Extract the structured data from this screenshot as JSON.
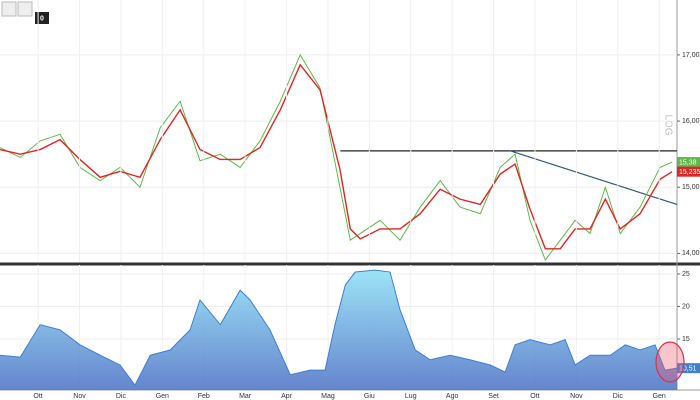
{
  "toolbar_label": "0",
  "chart_data": [
    {
      "type": "line",
      "scale_label": "LOG",
      "xlim": [
        -0.92,
        15.43
      ],
      "ylim": [
        13.87,
        17.83
      ],
      "yticks": [
        {
          "value": 14,
          "label": "14,00"
        },
        {
          "value": 15,
          "label": "15,00"
        },
        {
          "value": 16,
          "label": "16,00"
        },
        {
          "value": 17,
          "label": "17,00"
        }
      ],
      "x": [
        -0.92,
        -0.43,
        0.05,
        0.53,
        1.01,
        1.5,
        1.98,
        2.46,
        2.95,
        3.43,
        3.91,
        4.4,
        4.88,
        5.36,
        5.85,
        6.33,
        6.81,
        7.29,
        7.54,
        7.78,
        8.26,
        8.74,
        9.23,
        9.71,
        10.19,
        10.68,
        11.16,
        11.52,
        11.88,
        12.25,
        12.61,
        12.97,
        13.33,
        13.7,
        14.06,
        14.54,
        15.02,
        15.31
      ],
      "series": [
        {
          "color": "#5fb84a",
          "values": [
            15.6,
            15.45,
            15.7,
            15.8,
            15.3,
            15.1,
            15.3,
            15.0,
            15.9,
            16.3,
            15.4,
            15.5,
            15.3,
            15.7,
            16.3,
            17.0,
            16.5,
            15.0,
            14.2,
            14.3,
            14.5,
            14.2,
            14.7,
            15.1,
            14.7,
            14.6,
            15.3,
            15.5,
            14.5,
            13.9,
            14.2,
            14.5,
            14.3,
            15.0,
            14.3,
            14.7,
            15.3,
            15.38
          ],
          "value_labels": [
            null,
            null,
            null,
            null,
            null,
            null,
            null,
            null,
            null,
            null,
            null,
            null,
            null,
            null,
            null,
            null,
            null,
            null,
            null,
            null,
            null,
            null,
            null,
            null,
            null,
            null,
            null,
            null,
            null,
            null,
            null,
            null,
            null,
            null,
            null,
            null,
            null,
            "15,38"
          ]
        },
        {
          "color": "#e02525",
          "values": [
            15.57,
            15.5,
            15.57,
            15.72,
            15.42,
            15.15,
            15.24,
            15.15,
            15.72,
            16.17,
            15.57,
            15.42,
            15.42,
            15.6,
            16.17,
            16.85,
            16.47,
            15.27,
            14.37,
            14.22,
            14.37,
            14.37,
            14.6,
            14.97,
            14.82,
            14.74,
            15.2,
            15.35,
            14.67,
            14.07,
            14.07,
            14.37,
            14.37,
            14.82,
            14.37,
            14.6,
            15.12,
            15.235
          ],
          "value_labels": [
            null,
            null,
            null,
            null,
            null,
            null,
            null,
            null,
            null,
            null,
            null,
            null,
            null,
            null,
            null,
            null,
            null,
            null,
            null,
            null,
            null,
            null,
            null,
            null,
            null,
            null,
            null,
            null,
            null,
            null,
            null,
            null,
            null,
            null,
            null,
            null,
            null,
            "15,235"
          ]
        }
      ],
      "lines": [
        {
          "color": "#222222",
          "x": [
            7.3,
            15.43
          ],
          "y": [
            15.55,
            15.55
          ]
        },
        {
          "color": "#2e5b7a",
          "x": [
            11.4,
            15.43
          ],
          "y": [
            15.55,
            14.74
          ]
        }
      ]
    },
    {
      "type": "area",
      "xlim": [
        -0.92,
        15.43
      ],
      "ylim": [
        7.15,
        26.38
      ],
      "yticks": [
        15,
        20,
        25
      ],
      "xticks": [
        {
          "value": 0,
          "label": "Ott"
        },
        {
          "value": 1,
          "label": "Nov"
        },
        {
          "value": 2,
          "label": "Dic"
        },
        {
          "value": 3,
          "label": "Gen"
        },
        {
          "value": 4,
          "label": "Feb"
        },
        {
          "value": 5,
          "label": "Mar"
        },
        {
          "value": 6,
          "label": "Apr"
        },
        {
          "value": 7,
          "label": "Mag"
        },
        {
          "value": 8,
          "label": "Giu"
        },
        {
          "value": 9,
          "label": "Lug"
        },
        {
          "value": 10,
          "label": "Ago"
        },
        {
          "value": 11,
          "label": "Set"
        },
        {
          "value": 12,
          "label": "Ott"
        },
        {
          "value": 13,
          "label": "Nov"
        },
        {
          "value": 14,
          "label": "Dic"
        },
        {
          "value": 15,
          "label": "Gen"
        }
      ],
      "x": [
        -0.92,
        -0.43,
        0.05,
        0.53,
        1.01,
        1.5,
        1.98,
        2.34,
        2.71,
        3.19,
        3.67,
        3.91,
        4.4,
        4.88,
        5.12,
        5.6,
        6.09,
        6.57,
        6.93,
        7.17,
        7.42,
        7.66,
        8.14,
        8.5,
        8.74,
        9.11,
        9.47,
        9.95,
        10.43,
        10.92,
        11.28,
        11.52,
        11.88,
        12.37,
        12.73,
        12.97,
        13.33,
        13.82,
        14.18,
        14.54,
        14.9,
        15.14,
        15.43
      ],
      "series": [
        {
          "color": "#3f7fd0",
          "fill_top": "#8ee4f8",
          "fill_bottom": "#4a6fc4",
          "values": [
            12.5,
            12.2,
            17.2,
            16.4,
            14.1,
            12.5,
            11.0,
            7.9,
            12.5,
            13.3,
            16.4,
            21.0,
            17.2,
            22.5,
            21.0,
            16.4,
            9.5,
            10.2,
            10.2,
            17.2,
            23.3,
            25.3,
            25.6,
            25.3,
            19.5,
            13.3,
            11.8,
            12.5,
            11.8,
            11.0,
            9.9,
            14.1,
            14.9,
            14.1,
            14.9,
            11.0,
            12.5,
            12.5,
            14.1,
            13.3,
            14.1,
            10.2,
            10.51
          ],
          "value_labels": [
            null,
            null,
            null,
            null,
            null,
            null,
            null,
            null,
            null,
            null,
            null,
            null,
            null,
            null,
            null,
            null,
            null,
            null,
            null,
            null,
            null,
            null,
            null,
            null,
            null,
            null,
            null,
            null,
            null,
            null,
            null,
            null,
            null,
            null,
            null,
            null,
            null,
            null,
            null,
            null,
            null,
            null,
            "10,51"
          ]
        }
      ]
    }
  ]
}
